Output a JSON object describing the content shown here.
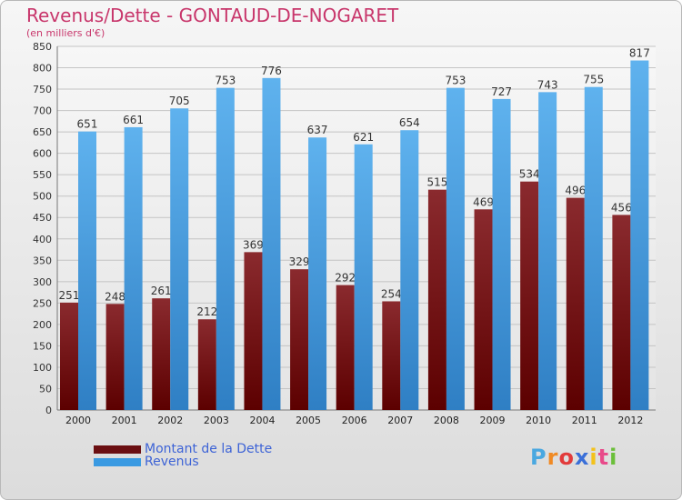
{
  "chart_data": {
    "type": "bar",
    "title": "Revenus/Dette - GONTAUD-DE-NOGARET",
    "subtitle": "(en milliers d'€)",
    "categories": [
      "2000",
      "2001",
      "2002",
      "2003",
      "2004",
      "2005",
      "2006",
      "2007",
      "2008",
      "2009",
      "2010",
      "2011",
      "2012"
    ],
    "series": [
      {
        "name": "Montant de la Dette",
        "color": "#6b0f12",
        "values": [
          251,
          248,
          261,
          212,
          369,
          329,
          292,
          254,
          515,
          469,
          534,
          496,
          456
        ]
      },
      {
        "name": "Revenus",
        "color": "#3a9ae2",
        "values": [
          651,
          661,
          705,
          753,
          776,
          637,
          621,
          654,
          753,
          727,
          743,
          755,
          817
        ]
      }
    ],
    "ylim": [
      0,
      850
    ],
    "yticks": [
      0,
      50,
      100,
      150,
      200,
      250,
      300,
      350,
      400,
      450,
      500,
      550,
      600,
      650,
      700,
      750,
      800,
      850
    ],
    "grid": true,
    "legend_position": "bottom-left"
  },
  "legend": {
    "items": [
      {
        "label": "Montant de la Dette",
        "color": "#6b0f12"
      },
      {
        "label": "Revenus",
        "color": "#3a9ae2"
      }
    ]
  },
  "logo": {
    "letters": [
      "P",
      "r",
      "o",
      "x",
      "i",
      "t",
      "i"
    ],
    "colors": [
      "#4aa8e0",
      "#f08a24",
      "#e23b3b",
      "#3a6fd8",
      "#f3c21b",
      "#e84a8a",
      "#6bbf3a"
    ]
  }
}
